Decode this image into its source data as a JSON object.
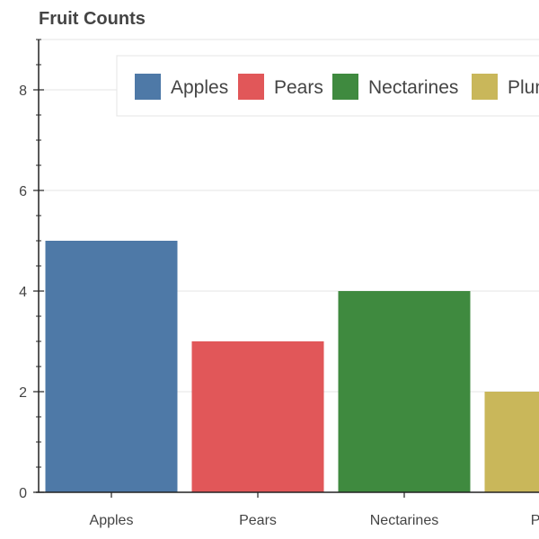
{
  "chart_data": {
    "type": "bar",
    "title": "Fruit Counts",
    "xlabel": "",
    "ylabel": "",
    "categories": [
      "Apples",
      "Pears",
      "Nectarines",
      "Plums"
    ],
    "values": [
      5,
      3,
      4,
      2
    ],
    "colors": [
      "#4e79a7",
      "#e15759",
      "#3f8a3f",
      "#c9b75a"
    ],
    "ylim": [
      0,
      9
    ],
    "yticks": [
      "0",
      "2",
      "4",
      "6",
      "8"
    ],
    "legend": {
      "placement": "top",
      "entries": [
        "Apples",
        "Pears",
        "Nectarines",
        "Plums"
      ]
    },
    "grid": true
  }
}
